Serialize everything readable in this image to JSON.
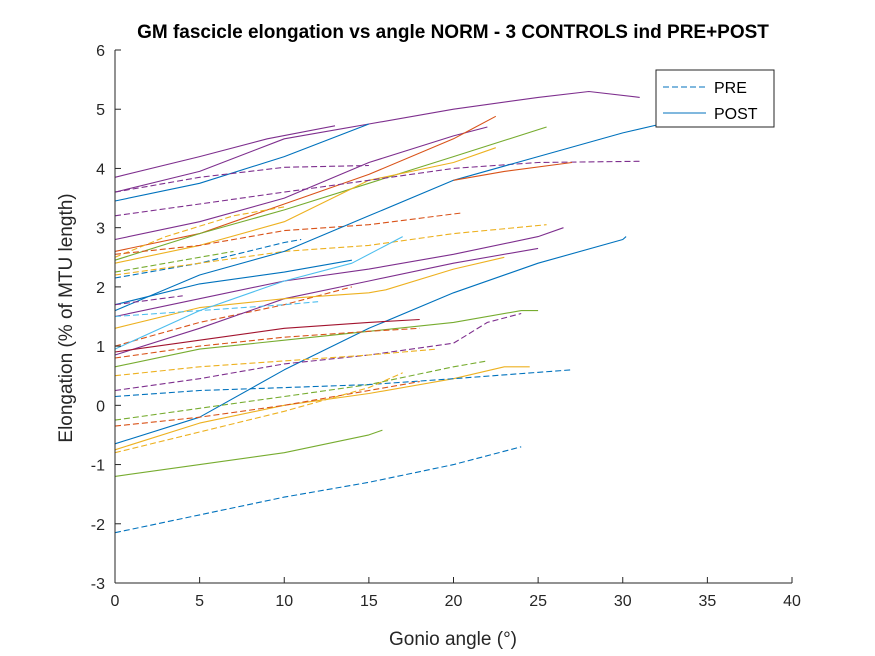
{
  "chart_data": {
    "type": "line",
    "title": "GM fascicle elongation vs angle NORM - 3 CONTROLS ind PRE+POST",
    "xlabel": "Gonio angle (°)",
    "ylabel": "Elongation (% of MTU length)",
    "xlim": [
      0,
      40
    ],
    "ylim": [
      -3,
      6
    ],
    "xticks": [
      0,
      5,
      10,
      15,
      20,
      25,
      30,
      35,
      40
    ],
    "yticks": [
      -3,
      -2,
      -1,
      0,
      1,
      2,
      3,
      4,
      5,
      6
    ],
    "grid": false,
    "legend": {
      "location": "top-right",
      "entries": [
        {
          "label": "PRE",
          "style": "dashed",
          "color": "#0072bd"
        },
        {
          "label": "POST",
          "style": "solid",
          "color": "#0072bd"
        }
      ]
    },
    "series": [
      {
        "style": "solid",
        "color": "#7e2f8e",
        "points": [
          [
            0,
            3.6
          ],
          [
            5,
            3.95
          ],
          [
            10,
            4.5
          ],
          [
            15,
            4.75
          ],
          [
            20,
            5.0
          ],
          [
            25,
            5.2
          ],
          [
            28,
            5.3
          ],
          [
            31,
            5.2
          ]
        ]
      },
      {
        "style": "solid",
        "color": "#0072bd",
        "points": [
          [
            0,
            3.45
          ],
          [
            5,
            3.75
          ],
          [
            10,
            4.2
          ],
          [
            15,
            4.75
          ]
        ]
      },
      {
        "style": "solid",
        "color": "#7e2f8e",
        "points": [
          [
            0,
            3.85
          ],
          [
            5,
            4.2
          ],
          [
            9,
            4.5
          ],
          [
            13,
            4.72
          ]
        ]
      },
      {
        "style": "solid",
        "color": "#7e2f8e",
        "points": [
          [
            0,
            2.8
          ],
          [
            5,
            3.1
          ],
          [
            10,
            3.5
          ],
          [
            15,
            4.1
          ],
          [
            20,
            4.55
          ],
          [
            22,
            4.7
          ]
        ]
      },
      {
        "style": "solid",
        "color": "#d95319",
        "points": [
          [
            0,
            2.6
          ],
          [
            5,
            2.9
          ],
          [
            10,
            3.4
          ],
          [
            15,
            3.9
          ],
          [
            20,
            4.5
          ],
          [
            22.5,
            4.88
          ]
        ]
      },
      {
        "style": "solid",
        "color": "#77ac30",
        "points": [
          [
            0,
            2.45
          ],
          [
            5,
            2.9
          ],
          [
            10,
            3.3
          ],
          [
            15,
            3.75
          ],
          [
            20,
            4.2
          ],
          [
            25.5,
            4.7
          ]
        ]
      },
      {
        "style": "solid",
        "color": "#edb120",
        "points": [
          [
            0,
            2.4
          ],
          [
            5,
            2.7
          ],
          [
            10,
            3.1
          ],
          [
            15,
            3.8
          ],
          [
            20,
            4.1
          ],
          [
            22.5,
            4.35
          ]
        ]
      },
      {
        "style": "dashed",
        "color": "#7e2f8e",
        "points": [
          [
            0,
            3.2
          ],
          [
            5,
            3.4
          ],
          [
            10,
            3.6
          ],
          [
            15,
            3.8
          ],
          [
            20,
            4.0
          ],
          [
            25,
            4.1
          ],
          [
            31,
            4.12
          ]
        ]
      },
      {
        "style": "dashed",
        "color": "#7e2f8e",
        "points": [
          [
            0,
            3.6
          ],
          [
            5,
            3.85
          ],
          [
            10,
            4.02
          ],
          [
            15,
            4.05
          ]
        ]
      },
      {
        "style": "dashed",
        "color": "#edb120",
        "points": [
          [
            0,
            2.5
          ],
          [
            3,
            2.85
          ],
          [
            7,
            3.2
          ],
          [
            10,
            3.35
          ]
        ]
      },
      {
        "style": "dashed",
        "color": "#d95319",
        "points": [
          [
            0,
            2.55
          ],
          [
            5,
            2.7
          ],
          [
            10,
            2.95
          ],
          [
            15,
            3.05
          ],
          [
            20.5,
            3.25
          ]
        ]
      },
      {
        "style": "dashed",
        "color": "#0072bd",
        "points": [
          [
            0,
            2.15
          ],
          [
            5,
            2.4
          ],
          [
            10,
            2.75
          ],
          [
            11,
            2.8
          ]
        ]
      },
      {
        "style": "dashed",
        "color": "#edb120",
        "points": [
          [
            0,
            2.2
          ],
          [
            5,
            2.4
          ],
          [
            10,
            2.6
          ],
          [
            15,
            2.7
          ],
          [
            20,
            2.9
          ],
          [
            25.5,
            3.05
          ]
        ]
      },
      {
        "style": "dashed",
        "color": "#77ac30",
        "points": [
          [
            0,
            2.25
          ],
          [
            5,
            2.5
          ],
          [
            7,
            2.6
          ]
        ]
      },
      {
        "style": "dashed",
        "color": "#d95319",
        "points": [
          [
            0,
            1.0
          ],
          [
            5,
            1.4
          ],
          [
            10,
            1.7
          ],
          [
            14,
            2.0
          ]
        ]
      },
      {
        "style": "solid",
        "color": "#0072bd",
        "points": [
          [
            0,
            1.6
          ],
          [
            5,
            2.2
          ],
          [
            10,
            2.6
          ],
          [
            15,
            3.2
          ],
          [
            20,
            3.8
          ],
          [
            25,
            4.2
          ],
          [
            30,
            4.6
          ],
          [
            33,
            4.8
          ]
        ]
      },
      {
        "style": "solid",
        "color": "#d95319",
        "points": [
          [
            20,
            3.8
          ],
          [
            23,
            3.95
          ],
          [
            27,
            4.1
          ]
        ]
      },
      {
        "style": "solid",
        "color": "#7e2f8e",
        "points": [
          [
            0,
            1.5
          ],
          [
            5,
            1.8
          ],
          [
            10,
            2.1
          ],
          [
            15,
            2.3
          ],
          [
            20,
            2.55
          ],
          [
            25,
            2.85
          ],
          [
            26.5,
            3.0
          ]
        ]
      },
      {
        "style": "solid",
        "color": "#7e2f8e",
        "points": [
          [
            0,
            0.85
          ],
          [
            5,
            1.3
          ],
          [
            10,
            1.8
          ],
          [
            15,
            2.1
          ],
          [
            20,
            2.4
          ],
          [
            25,
            2.65
          ]
        ]
      },
      {
        "style": "solid",
        "color": "#edb120",
        "points": [
          [
            0,
            1.3
          ],
          [
            5,
            1.65
          ],
          [
            10,
            1.8
          ],
          [
            15,
            1.9
          ],
          [
            16,
            1.95
          ],
          [
            20,
            2.3
          ],
          [
            23,
            2.5
          ]
        ]
      },
      {
        "style": "solid",
        "color": "#4dbeee",
        "points": [
          [
            0,
            0.95
          ],
          [
            5,
            1.6
          ],
          [
            10,
            2.1
          ],
          [
            14,
            2.4
          ],
          [
            17,
            2.85
          ]
        ]
      },
      {
        "style": "solid",
        "color": "#0072bd",
        "points": [
          [
            0,
            -0.65
          ],
          [
            5,
            -0.2
          ],
          [
            10,
            0.6
          ],
          [
            15,
            1.3
          ],
          [
            20,
            1.9
          ],
          [
            25,
            2.4
          ],
          [
            30,
            2.8
          ],
          [
            30.2,
            2.85
          ]
        ]
      },
      {
        "style": "solid",
        "color": "#77ac30",
        "points": [
          [
            0,
            0.65
          ],
          [
            5,
            0.95
          ],
          [
            10,
            1.1
          ],
          [
            15,
            1.25
          ],
          [
            20,
            1.4
          ],
          [
            24,
            1.6
          ],
          [
            25,
            1.6
          ]
        ]
      },
      {
        "style": "solid",
        "color": "#a2142f",
        "points": [
          [
            0,
            0.9
          ],
          [
            5,
            1.1
          ],
          [
            10,
            1.3
          ],
          [
            15,
            1.4
          ],
          [
            18,
            1.45
          ]
        ]
      },
      {
        "style": "solid",
        "color": "#edb120",
        "points": [
          [
            0,
            -0.75
          ],
          [
            5,
            -0.3
          ],
          [
            10,
            0.0
          ],
          [
            15,
            0.2
          ],
          [
            20,
            0.45
          ],
          [
            23,
            0.65
          ],
          [
            24.5,
            0.65
          ]
        ]
      },
      {
        "style": "solid",
        "color": "#77ac30",
        "points": [
          [
            0,
            -1.2
          ],
          [
            5,
            -1.0
          ],
          [
            10,
            -0.8
          ],
          [
            15,
            -0.5
          ],
          [
            15.8,
            -0.42
          ]
        ]
      },
      {
        "style": "solid",
        "color": "#0072bd",
        "points": [
          [
            0,
            1.7
          ],
          [
            5,
            2.05
          ],
          [
            10,
            2.25
          ],
          [
            14,
            2.45
          ]
        ]
      },
      {
        "style": "dashed",
        "color": "#7e2f8e",
        "points": [
          [
            0,
            0.25
          ],
          [
            5,
            0.45
          ],
          [
            10,
            0.7
          ],
          [
            15,
            0.85
          ],
          [
            20,
            1.05
          ],
          [
            22,
            1.4
          ],
          [
            24,
            1.55
          ]
        ]
      },
      {
        "style": "dashed",
        "color": "#d95319",
        "points": [
          [
            0,
            0.8
          ],
          [
            5,
            1.0
          ],
          [
            10,
            1.15
          ],
          [
            15,
            1.25
          ],
          [
            18,
            1.3
          ]
        ]
      },
      {
        "style": "dashed",
        "color": "#edb120",
        "points": [
          [
            0,
            0.5
          ],
          [
            5,
            0.65
          ],
          [
            10,
            0.75
          ],
          [
            15,
            0.85
          ],
          [
            19,
            0.95
          ]
        ]
      },
      {
        "style": "dashed",
        "color": "#77ac30",
        "points": [
          [
            0,
            -0.25
          ],
          [
            5,
            -0.05
          ],
          [
            10,
            0.15
          ],
          [
            15,
            0.35
          ],
          [
            20,
            0.65
          ],
          [
            22,
            0.75
          ]
        ]
      },
      {
        "style": "dashed",
        "color": "#0072bd",
        "points": [
          [
            0,
            0.15
          ],
          [
            5,
            0.25
          ],
          [
            10,
            0.3
          ],
          [
            15,
            0.35
          ],
          [
            20,
            0.45
          ],
          [
            27,
            0.6
          ]
        ]
      },
      {
        "style": "dashed",
        "color": "#d95319",
        "points": [
          [
            0,
            -0.35
          ],
          [
            5,
            -0.2
          ],
          [
            10,
            0.0
          ],
          [
            15,
            0.25
          ],
          [
            18,
            0.4
          ]
        ]
      },
      {
        "style": "dashed",
        "color": "#edb120",
        "points": [
          [
            0,
            -0.8
          ],
          [
            5,
            -0.45
          ],
          [
            10,
            -0.1
          ],
          [
            15,
            0.3
          ],
          [
            17,
            0.55
          ]
        ]
      },
      {
        "style": "dashed",
        "color": "#0072bd",
        "points": [
          [
            0,
            -2.15
          ],
          [
            5,
            -1.85
          ],
          [
            10,
            -1.55
          ],
          [
            15,
            -1.3
          ],
          [
            20,
            -1.0
          ],
          [
            24,
            -0.7
          ]
        ]
      },
      {
        "style": "dashed",
        "color": "#4dbeee",
        "points": [
          [
            0,
            1.5
          ],
          [
            5,
            1.6
          ],
          [
            10,
            1.7
          ],
          [
            12,
            1.75
          ]
        ]
      },
      {
        "style": "dashed",
        "color": "#7e2f8e",
        "points": [
          [
            0,
            1.7
          ],
          [
            4,
            1.85
          ]
        ]
      }
    ]
  }
}
